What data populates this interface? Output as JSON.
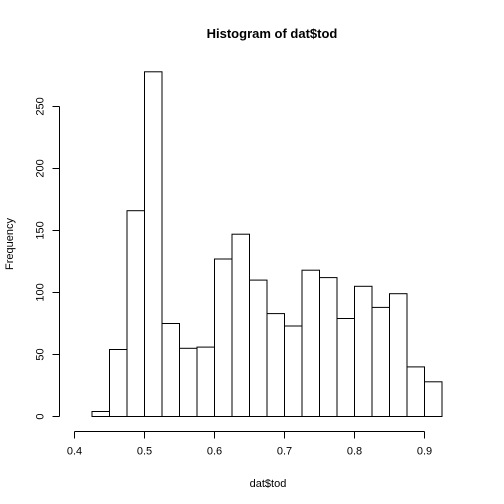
{
  "chart_data": {
    "type": "bar",
    "title": "Histogram of dat$tod",
    "xlabel": "dat$tod",
    "ylabel": "Frequency",
    "bin_edges": [
      0.425,
      0.45,
      0.475,
      0.5,
      0.525,
      0.55,
      0.575,
      0.6,
      0.625,
      0.65,
      0.675,
      0.7,
      0.725,
      0.75,
      0.775,
      0.8,
      0.825,
      0.85,
      0.875,
      0.9,
      0.925
    ],
    "values": [
      4,
      54,
      166,
      278,
      75,
      55,
      56,
      127,
      147,
      110,
      83,
      73,
      118,
      112,
      79,
      105,
      88,
      99,
      40,
      28
    ],
    "xlim": [
      0.4,
      0.95
    ],
    "ylim": [
      0,
      280
    ],
    "xticks": [
      "0.4",
      "0.5",
      "0.6",
      "0.7",
      "0.8",
      "0.9"
    ],
    "yticks": [
      "0",
      "50",
      "100",
      "150",
      "200",
      "250"
    ],
    "grid": false,
    "bar_fill": "#ffffff",
    "bar_stroke": "#000000"
  }
}
